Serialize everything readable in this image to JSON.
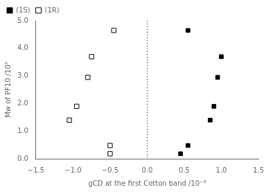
{
  "chart_data": {
    "type": "scatter",
    "xlabel": "gCD at the first Cotton band /10⁻³",
    "ylabel": "Mw of PF10 /10⁵",
    "xlim": [
      -1.5,
      1.5
    ],
    "ylim": [
      0.0,
      5.0
    ],
    "xticks": [
      {
        "value": -1.5,
        "label": "−1.5"
      },
      {
        "value": -1.0,
        "label": "−1.0"
      },
      {
        "value": -0.5,
        "label": "−0.5"
      },
      {
        "value": 0.0,
        "label": "0.0"
      },
      {
        "value": 0.5,
        "label": "0.5"
      },
      {
        "value": 1.0,
        "label": "1.0"
      },
      {
        "value": 1.5,
        "label": "1.5"
      }
    ],
    "yticks": [
      {
        "value": 0.0,
        "label": "0.0"
      },
      {
        "value": 1.0,
        "label": "1.0"
      },
      {
        "value": 2.0,
        "label": "2.0"
      },
      {
        "value": 3.0,
        "label": "3.0"
      },
      {
        "value": 4.0,
        "label": "4.0"
      },
      {
        "value": 5.0,
        "label": "5.0"
      }
    ],
    "grid": false,
    "legend": "upper left",
    "reference_lines": [
      {
        "x": 0.0,
        "line_style": "dotted",
        "color": "black"
      }
    ],
    "series": [
      {
        "name": "(1S)",
        "color": "black",
        "marker": "square",
        "x": [
          0.45,
          0.55,
          0.55,
          0.85,
          0.9,
          0.95,
          1.0
        ],
        "values": [
          0.18,
          0.48,
          4.65,
          1.4,
          1.9,
          2.95,
          3.7
        ]
      },
      {
        "name": "(1R)",
        "color": "black",
        "marker": "open_square",
        "x": [
          -0.5,
          -0.5,
          -0.75,
          -0.8,
          -1.05,
          -0.95,
          -0.45
        ],
        "values": [
          0.48,
          0.18,
          3.7,
          2.95,
          1.4,
          1.9,
          4.65
        ]
      }
    ]
  }
}
